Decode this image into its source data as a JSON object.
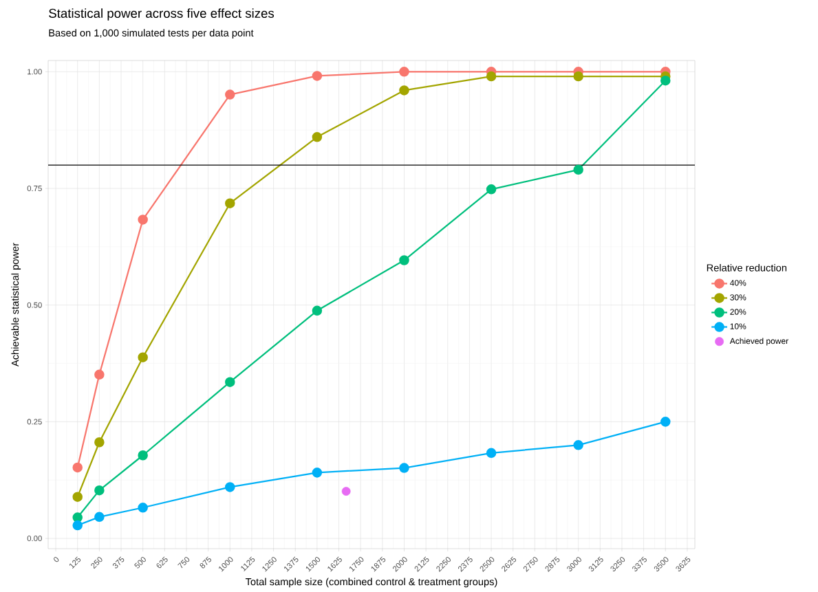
{
  "chart_data": {
    "type": "line",
    "title": "Statistical power across five effect sizes",
    "subtitle": "Based on 1,000 simulated tests per data point",
    "xlabel": "Total sample size (combined control & treatment groups)",
    "ylabel": "Achievable statistical power",
    "legend_title": "Relative reduction",
    "x": [
      125,
      250,
      500,
      1000,
      1500,
      2000,
      2500,
      3000,
      3500
    ],
    "series": [
      {
        "name": "40%",
        "color": "#f8766d",
        "values": [
          0.152,
          0.351,
          0.683,
          0.951,
          0.991,
          1.0,
          1.0,
          1.0,
          1.0
        ]
      },
      {
        "name": "30%",
        "color": "#a3a500",
        "values": [
          0.089,
          0.206,
          0.388,
          0.718,
          0.86,
          0.96,
          0.99,
          0.99,
          0.99
        ]
      },
      {
        "name": "20%",
        "color": "#00bf7d",
        "values": [
          0.045,
          0.103,
          0.178,
          0.335,
          0.488,
          0.596,
          0.748,
          0.79,
          0.981
        ]
      },
      {
        "name": "10%",
        "color": "#00b0f6",
        "values": [
          0.028,
          0.046,
          0.066,
          0.11,
          0.141,
          0.151,
          0.183,
          0.2,
          0.25
        ]
      },
      {
        "name": "Achieved power",
        "color": "#e76bf3",
        "type": "scatter",
        "x": [
          1667
        ],
        "values": [
          0.101
        ]
      }
    ],
    "xlim": [
      -43.75,
      3668.75
    ],
    "ylim": [
      -0.022,
      1.024
    ],
    "xticks": [
      0,
      125,
      250,
      375,
      500,
      625,
      750,
      875,
      1000,
      1125,
      1250,
      1375,
      1500,
      1625,
      1750,
      1875,
      2000,
      2125,
      2250,
      2375,
      2500,
      2625,
      2750,
      2875,
      3000,
      3125,
      3250,
      3375,
      3500,
      3625
    ],
    "yticks": [
      {
        "value": 0,
        "label": "0.00"
      },
      {
        "value": 0.25,
        "label": "0.25"
      },
      {
        "value": 0.5,
        "label": "0.50"
      },
      {
        "value": 0.75,
        "label": "0.75"
      },
      {
        "value": 1,
        "label": "1.00"
      }
    ],
    "ref_lines": [
      {
        "axis": "y",
        "value": 0.8,
        "color": "#000000"
      }
    ],
    "grid": true,
    "legend": "right",
    "marker": "circle",
    "line_style": "solid"
  }
}
